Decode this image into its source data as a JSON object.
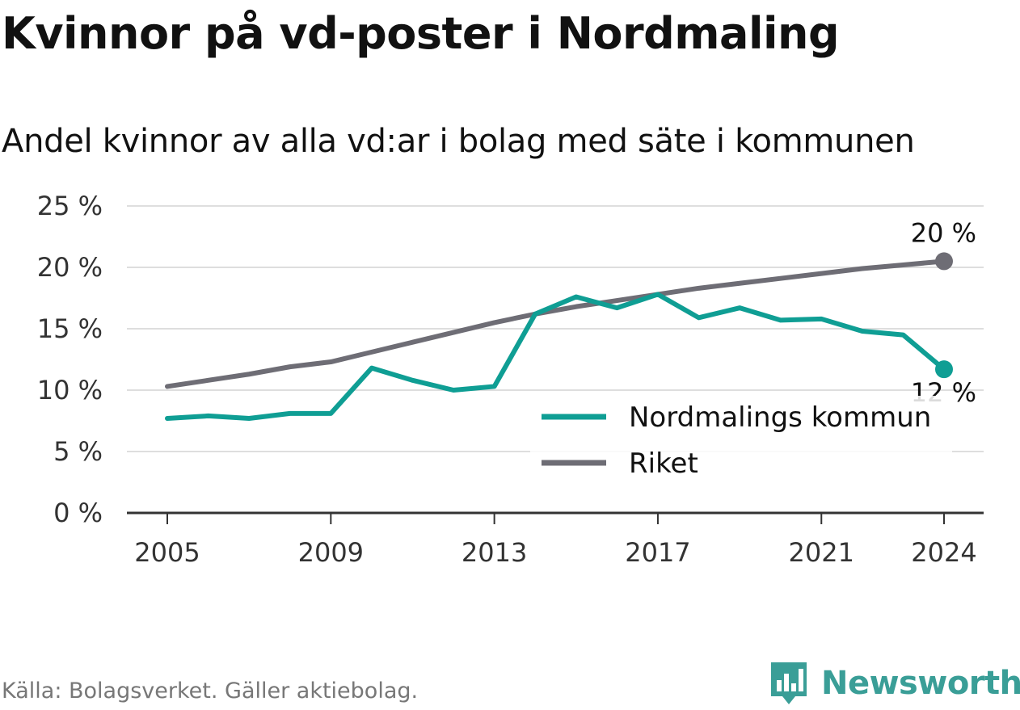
{
  "title": "Kvinnor på vd-poster i Nordmaling",
  "subtitle": "Andel kvinnor av alla vd:ar i bolag med säte i kommunen",
  "source": "Källa: Bolagsverket. Gäller aktiebolag.",
  "brand": "Newsworthy",
  "colors": {
    "kommun": "#0f9e94",
    "riket": "#6e6d75",
    "grid": "#dedede",
    "axis": "#333333"
  },
  "chart_data": {
    "type": "line",
    "x": [
      2005,
      2006,
      2007,
      2008,
      2009,
      2010,
      2011,
      2012,
      2013,
      2014,
      2015,
      2016,
      2017,
      2018,
      2019,
      2020,
      2021,
      2022,
      2023,
      2024
    ],
    "x_ticks": [
      2005,
      2009,
      2013,
      2017,
      2021,
      2024
    ],
    "y_ticks": [
      0,
      5,
      10,
      15,
      20,
      25
    ],
    "y_tick_labels": [
      "0 %",
      "5 %",
      "10 %",
      "15 %",
      "20 %",
      "25 %"
    ],
    "ylim": [
      0,
      25
    ],
    "grid": true,
    "legend_position": "bottom-right",
    "series": [
      {
        "name": "Nordmalings kommun",
        "color": "#0f9e94",
        "values": [
          7.7,
          7.9,
          7.7,
          8.1,
          8.1,
          11.8,
          10.8,
          10.0,
          10.3,
          16.2,
          17.6,
          16.7,
          17.8,
          15.9,
          16.7,
          15.7,
          15.8,
          14.8,
          14.5,
          11.7
        ],
        "end_label": "12 %"
      },
      {
        "name": "Riket",
        "color": "#6e6d75",
        "values": [
          10.3,
          10.8,
          11.3,
          11.9,
          12.3,
          13.1,
          13.9,
          14.7,
          15.5,
          16.2,
          16.8,
          17.3,
          17.8,
          18.3,
          18.7,
          19.1,
          19.5,
          19.9,
          20.2,
          20.5
        ],
        "end_label": "20 %"
      }
    ]
  }
}
